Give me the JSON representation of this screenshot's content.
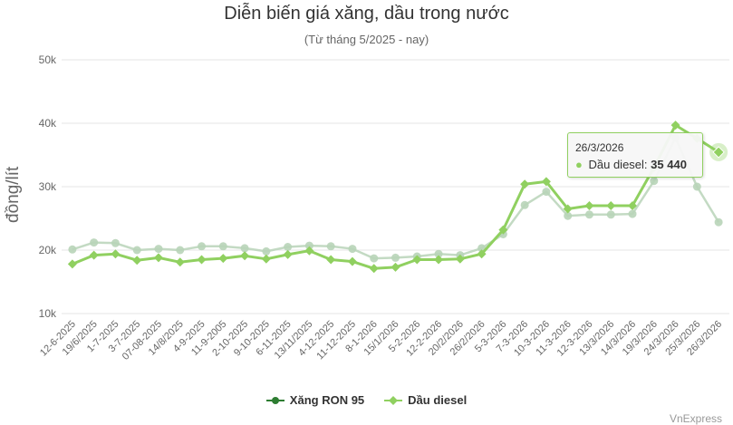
{
  "chart_data": {
    "type": "line",
    "title": "Diễn biến giá xăng, dầu trong nước",
    "subtitle": "(Từ tháng 5/2025 - nay)",
    "ylabel": "đồng/lít",
    "xlabel": "",
    "ylim": [
      10000,
      50000
    ],
    "yticks": [
      "10k",
      "20k",
      "30k",
      "40k",
      "50k"
    ],
    "grid": true,
    "legend_position": "bottom",
    "categories": [
      "12-6-2025",
      "19/6/2025",
      "1-7-2025",
      "3-7-2025",
      "07-08-2025",
      "14/8/2025",
      "4-9-2025",
      "11-9-2005",
      "2-10-2025",
      "9-10-2025",
      "6-11-2025",
      "13/11/2025",
      "4-12-2025",
      "11-12-2025",
      "8-1-2026",
      "15/1/2026",
      "5-2-2026",
      "12-2-2026",
      "20/2/2026",
      "26/2/2026",
      "5-3-2026",
      "7-3-2026",
      "10-3-2026",
      "11-3-2026",
      "12-3-2026",
      "13/3/2026",
      "14/3/2026",
      "19/3/2026",
      "24/3/2026",
      "25/3/2026",
      "26/3/2026"
    ],
    "series": [
      {
        "name": "Xăng RON 95",
        "color": "#b8d4b8",
        "values": [
          20100,
          21200,
          21100,
          20000,
          20200,
          20000,
          20600,
          20600,
          20300,
          19800,
          20500,
          20700,
          20600,
          20200,
          18700,
          18800,
          19000,
          19400,
          19200,
          20300,
          22500,
          27100,
          29200,
          25400,
          25600,
          25600,
          25700,
          30900,
          37700,
          30000,
          24400
        ]
      },
      {
        "name": "Dầu diesel",
        "color": "#90d060",
        "values": [
          17800,
          19200,
          19400,
          18400,
          18800,
          18100,
          18500,
          18700,
          19100,
          18600,
          19300,
          19900,
          18500,
          18200,
          17100,
          17300,
          18500,
          18500,
          18600,
          19400,
          23200,
          30400,
          30800,
          26500,
          27000,
          27000,
          27000,
          33000,
          39700,
          37600,
          35440
        ]
      }
    ],
    "tooltip": {
      "date": "26/3/2026",
      "series": "Dầu diesel:",
      "value": "35 440"
    },
    "credit": "VnExpress"
  }
}
